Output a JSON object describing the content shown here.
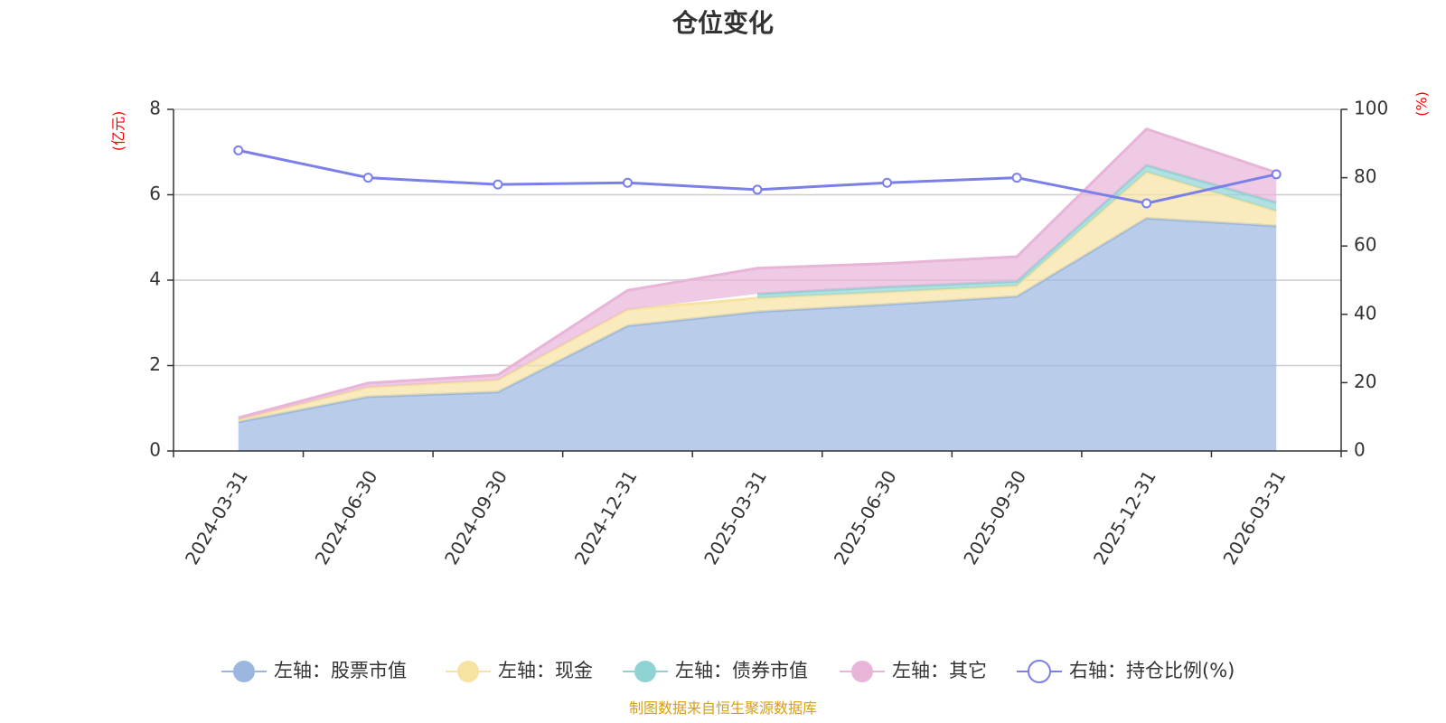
{
  "title": "仓位变化",
  "source_note": "制图数据来自恒生聚源数据库",
  "left_axis_unit": "(亿元)",
  "right_axis_unit": "(%)",
  "chart_data": {
    "type": "area",
    "title": "仓位变化",
    "categories": [
      "2024-03-31",
      "2024-06-30",
      "2024-09-30",
      "2024-12-31",
      "2025-03-31",
      "2025-06-30",
      "2025-09-30",
      "2025-12-31",
      "2026-03-31"
    ],
    "left_axis": {
      "unit": "(亿元)",
      "min": 0,
      "max": 8,
      "ticks": [
        0,
        2,
        4,
        6,
        8
      ]
    },
    "right_axis": {
      "unit": "(%)",
      "min": 0,
      "max": 100,
      "ticks": [
        0,
        20,
        40,
        60,
        80,
        100
      ]
    },
    "grid": true,
    "legend_position": "bottom",
    "series": [
      {
        "name": "左轴：股票市值",
        "axis": "left",
        "type": "area",
        "stacked": true,
        "color": "#9bb7e0",
        "values": [
          0.68,
          1.27,
          1.38,
          2.93,
          3.26,
          3.43,
          3.62,
          5.45,
          5.27
        ]
      },
      {
        "name": "左轴：现金",
        "axis": "left",
        "type": "area",
        "stacked": true,
        "color": "#f6e3a1",
        "values": [
          0.05,
          0.22,
          0.28,
          0.38,
          0.32,
          0.29,
          0.25,
          1.08,
          0.35
        ]
      },
      {
        "name": "左轴：债券市值",
        "axis": "left",
        "type": "area",
        "stacked": true,
        "color": "#8fd3d4",
        "values": [
          null,
          null,
          null,
          null,
          0.1,
          0.12,
          0.1,
          0.16,
          0.2
        ]
      },
      {
        "name": "左轴：其它",
        "axis": "left",
        "type": "area",
        "stacked": true,
        "color": "#e8b4d8",
        "values": [
          0.05,
          0.1,
          0.12,
          0.45,
          0.6,
          0.55,
          0.58,
          0.85,
          0.7
        ]
      },
      {
        "name": "右轴：持仓比例(%)",
        "axis": "right",
        "type": "line",
        "color": "#7b7fe8",
        "values": [
          88,
          80,
          78,
          78.5,
          76.5,
          78.5,
          80,
          72.5,
          81
        ]
      }
    ]
  }
}
